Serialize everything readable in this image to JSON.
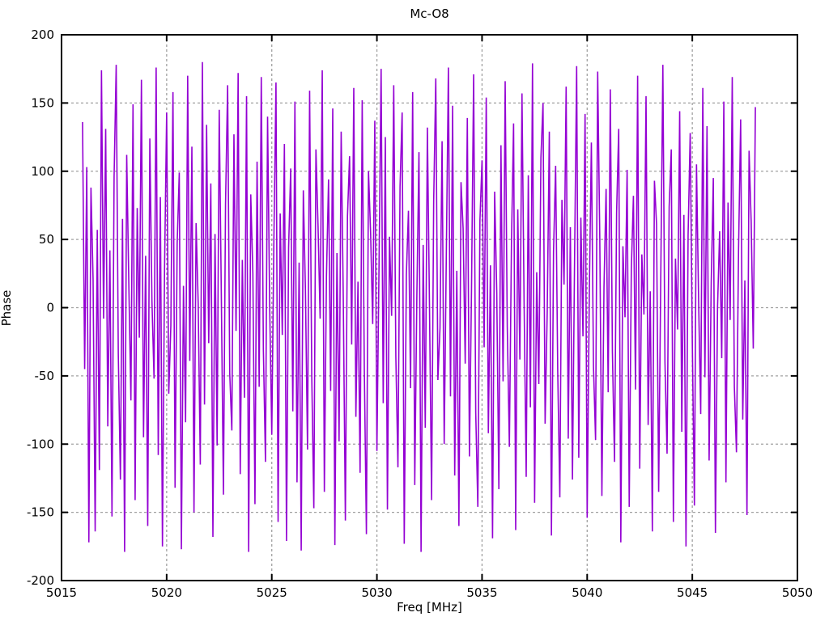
{
  "chart": {
    "title": "Mc-O8",
    "xlabel": "Freq [MHz]",
    "ylabel": "Phase"
  },
  "chart_data": {
    "type": "line",
    "title": "Mc-O8",
    "xlabel": "Freq [MHz]",
    "ylabel": "Phase",
    "xlim": [
      5015,
      5050
    ],
    "ylim": [
      -200,
      200
    ],
    "x_ticks": [
      5015,
      5020,
      5025,
      5030,
      5035,
      5040,
      5045,
      5050
    ],
    "y_ticks": [
      -200,
      -150,
      -100,
      -50,
      0,
      50,
      100,
      150,
      200
    ],
    "grid": true,
    "grid_style": "dashed",
    "grid_color": "#a0a0a0",
    "border_color": "#000000",
    "line_color": "#9400d3",
    "legend": "none",
    "series": [
      {
        "name": "Phase",
        "x_start": 5016.0,
        "x_step": 0.1,
        "values": [
          136,
          -45,
          103,
          -172,
          88,
          21,
          -164,
          57,
          -119,
          174,
          -8,
          131,
          -87,
          42,
          -153,
          96,
          178,
          -34,
          -126,
          65,
          -179,
          112,
          18,
          -68,
          149,
          -141,
          73,
          -22,
          167,
          -95,
          38,
          -160,
          124,
          5,
          -52,
          176,
          -108,
          81,
          -175,
          29,
          143,
          -63,
          -13,
          158,
          -132,
          47,
          99,
          -177,
          16,
          -84,
          170,
          -39,
          118,
          -150,
          62,
          3,
          -115,
          180,
          -71,
          134,
          -26,
          91,
          -168,
          54,
          -101,
          145,
          10,
          -137,
          76,
          163,
          -48,
          -90,
          127,
          -17,
          172,
          -122,
          35,
          -66,
          155,
          -179,
          83,
          25,
          -144,
          107,
          -58,
          169,
          -31,
          -113,
          140,
          1,
          -93,
          50,
          165,
          -157,
          69,
          -20,
          120,
          -171,
          44,
          102,
          -76,
          151,
          -128,
          33,
          -178,
          86,
          13,
          -104,
          159,
          -49,
          -147,
          116,
          60,
          -8,
          174,
          -135,
          23,
          94,
          -61,
          146,
          -174,
          40,
          -98,
          129,
          7,
          -156,
          67,
          111,
          -27,
          161,
          -80,
          19,
          -121,
          152,
          -44,
          -166,
          100,
          55,
          -12,
          137,
          -105,
          30,
          175,
          -70,
          125,
          -148,
          52,
          -6,
          163,
          -36,
          -117,
          89,
          143,
          -173,
          24,
          71,
          -59,
          158,
          -130,
          9,
          114,
          -179,
          46,
          -88,
          132,
          2,
          -141,
          78,
          168,
          -53,
          -15,
          122,
          -100,
          37,
          176,
          -65,
          148,
          -123,
          27,
          -160,
          92,
          58,
          -41,
          139,
          -109,
          14,
          171,
          -77,
          -146,
          64,
          108,
          -29,
          154,
          -92,
          31,
          -169,
          85,
          11,
          -133,
          119,
          -54,
          166,
          -14,
          -102,
          48,
          135,
          -163,
          72,
          -38,
          157,
          4,
          -124,
          97,
          -73,
          179,
          -143,
          26,
          -56,
          110,
          150,
          -85,
          -3,
          129,
          -167,
          41,
          104,
          -47,
          -139,
          79,
          17,
          162,
          -96,
          59,
          -126,
          34,
          177,
          -110,
          66,
          -21,
          142,
          -154,
          8,
          121,
          -43,
          -97,
          173,
          51,
          -138,
          15,
          87,
          -62,
          160,
          -32,
          -113,
          70,
          131,
          -172,
          45,
          -7,
          101,
          -146,
          28,
          82,
          -60,
          170,
          -118,
          39,
          -5,
          155,
          -86,
          12,
          -164,
          93,
          61,
          -135,
          22,
          178,
          -40,
          -107,
          74,
          116,
          -157,
          36,
          -16,
          144,
          -91,
          68,
          -175,
          53,
          128,
          -25,
          -145,
          105,
          6,
          -78,
          161,
          -51,
          133,
          -112,
          18,
          95,
          -165,
          0,
          56,
          -37,
          151,
          -128,
          77,
          -9,
          169,
          -58,
          -106,
          43,
          138,
          -82,
          20,
          -152,
          115,
          63,
          -30,
          147
        ]
      }
    ]
  }
}
